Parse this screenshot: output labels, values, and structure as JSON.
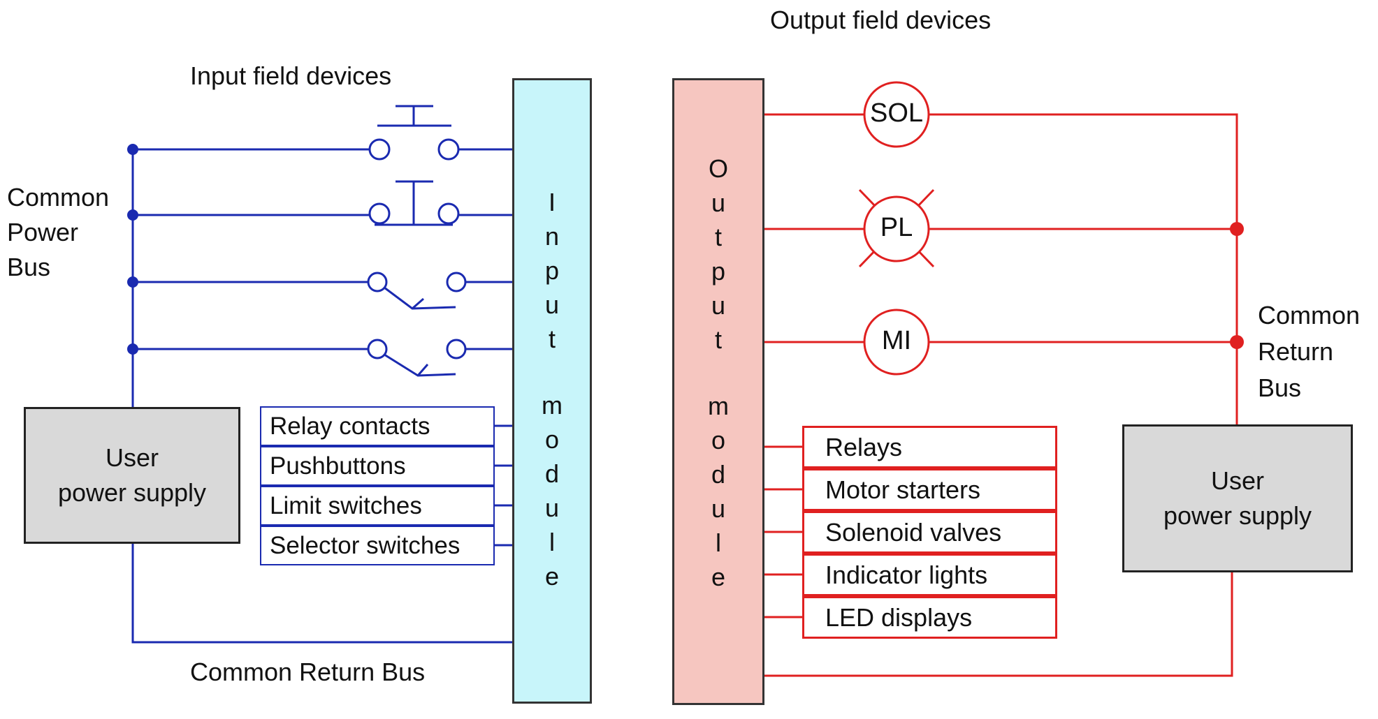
{
  "input_side": {
    "title": "Input field devices",
    "power_bus_label": "Common\nPower\nBus",
    "power_supply_label": "User\npower supply",
    "return_bus_label": "Common Return Bus",
    "module_letters": [
      "I",
      "n",
      "p",
      "u",
      "t",
      "",
      "m",
      "o",
      "d",
      "u",
      "l",
      "e"
    ],
    "devices": [
      "Relay contacts",
      "Pushbuttons",
      "Limit switches",
      "Selector switches"
    ],
    "wire_color": "#1a2ab0",
    "module_color": "#c8f5fa"
  },
  "output_side": {
    "title": "Output field devices",
    "coils": [
      "SOL",
      "PL",
      "MI"
    ],
    "return_bus_label": "Common\nReturn\nBus",
    "power_supply_label": "User\npower supply",
    "module_letters": [
      "O",
      "u",
      "t",
      "p",
      "u",
      "t",
      "",
      "m",
      "o",
      "d",
      "u",
      "l",
      "e"
    ],
    "devices": [
      "Relays",
      "Motor starters",
      "Solenoid valves",
      "Indicator lights",
      "LED displays"
    ],
    "wire_color": "#e02020",
    "module_color": "#f6c6c0"
  }
}
